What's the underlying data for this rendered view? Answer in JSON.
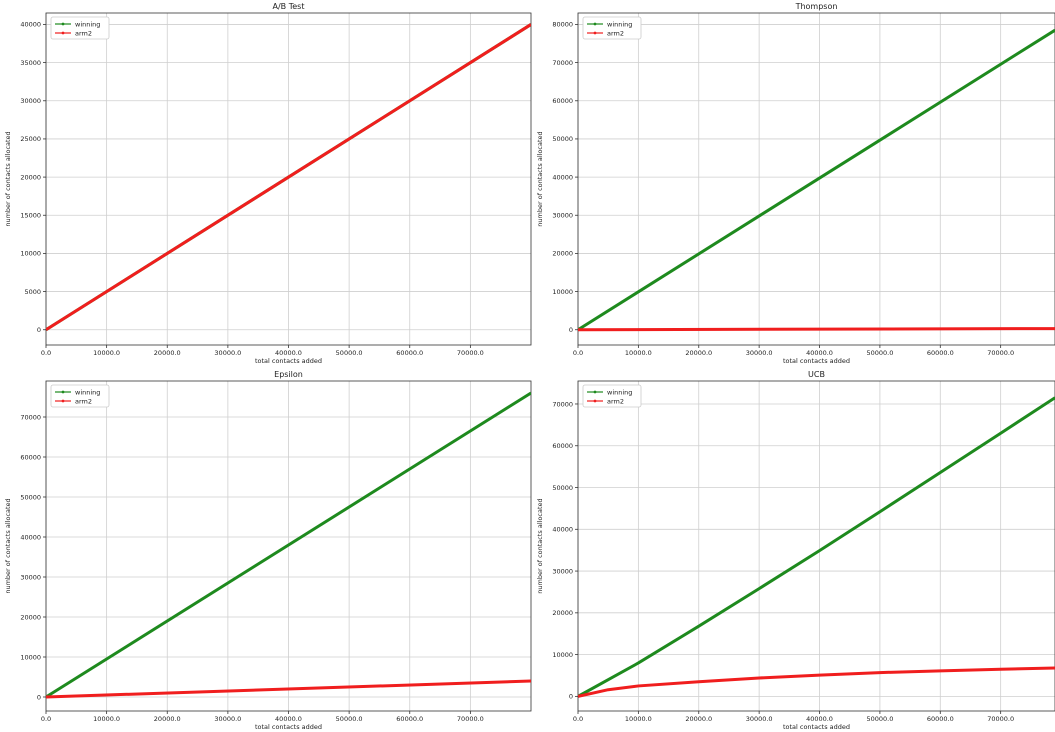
{
  "chart_data": [
    {
      "type": "line",
      "title": "A/B Test",
      "xlabel": "total contacts added",
      "ylabel": "number of contacts allocated",
      "xlim": [
        0,
        80000
      ],
      "ylim": [
        -2000,
        41500
      ],
      "xticks": [
        0,
        10000,
        20000,
        30000,
        40000,
        50000,
        60000,
        70000
      ],
      "xtick_labels": [
        "0.0",
        "10000.0",
        "20000.0",
        "30000.0",
        "40000.0",
        "50000.0",
        "60000.0",
        "70000.0"
      ],
      "yticks": [
        0,
        5000,
        10000,
        15000,
        20000,
        25000,
        30000,
        35000,
        40000
      ],
      "ytick_labels": [
        "0",
        "5000",
        "10000",
        "15000",
        "20000",
        "25000",
        "30000",
        "35000",
        "40000"
      ],
      "grid": true,
      "legend": "top-left",
      "series": [
        {
          "name": "winning",
          "color": "#1e8a1e",
          "x": [
            0,
            80000
          ],
          "y": [
            0,
            40000
          ]
        },
        {
          "name": "arm2",
          "color": "#f01e1e",
          "x": [
            0,
            80000
          ],
          "y": [
            0,
            40000
          ]
        }
      ]
    },
    {
      "type": "line",
      "title": "Thompson",
      "xlabel": "total contacts added",
      "ylabel": "number of contacts allocated",
      "xlim": [
        0,
        79000
      ],
      "ylim": [
        -4000,
        83000
      ],
      "xticks": [
        0,
        10000,
        20000,
        30000,
        40000,
        50000,
        60000,
        70000
      ],
      "xtick_labels": [
        "0.0",
        "10000.0",
        "20000.0",
        "30000.0",
        "40000.0",
        "50000.0",
        "60000.0",
        "70000.0"
      ],
      "yticks": [
        0,
        10000,
        20000,
        30000,
        40000,
        50000,
        60000,
        70000,
        80000
      ],
      "ytick_labels": [
        "0",
        "10000",
        "20000",
        "30000",
        "40000",
        "50000",
        "60000",
        "70000",
        "80000"
      ],
      "grid": true,
      "legend": "top-left",
      "series": [
        {
          "name": "winning",
          "color": "#1e8a1e",
          "x": [
            0,
            79000
          ],
          "y": [
            0,
            78500
          ]
        },
        {
          "name": "arm2",
          "color": "#f01e1e",
          "x": [
            0,
            79000
          ],
          "y": [
            0,
            300
          ]
        }
      ]
    },
    {
      "type": "line",
      "title": "Epsilon",
      "xlabel": "total contacts added",
      "ylabel": "number of contacts allocated",
      "xlim": [
        0,
        80000
      ],
      "ylim": [
        -3500,
        79000
      ],
      "xticks": [
        0,
        10000,
        20000,
        30000,
        40000,
        50000,
        60000,
        70000
      ],
      "xtick_labels": [
        "0.0",
        "10000.0",
        "20000.0",
        "30000.0",
        "40000.0",
        "50000.0",
        "60000.0",
        "70000.0"
      ],
      "yticks": [
        0,
        10000,
        20000,
        30000,
        40000,
        50000,
        60000,
        70000
      ],
      "ytick_labels": [
        "0",
        "10000",
        "20000",
        "30000",
        "40000",
        "50000",
        "60000",
        "70000"
      ],
      "grid": true,
      "legend": "top-left",
      "series": [
        {
          "name": "winning",
          "color": "#1e8a1e",
          "x": [
            0,
            80000
          ],
          "y": [
            0,
            76000
          ]
        },
        {
          "name": "arm2",
          "color": "#f01e1e",
          "x": [
            0,
            80000
          ],
          "y": [
            0,
            4000
          ]
        }
      ]
    },
    {
      "type": "line",
      "title": "UCB",
      "xlabel": "total contacts added",
      "ylabel": "number of contacts allocated",
      "xlim": [
        0,
        79000
      ],
      "ylim": [
        -3500,
        75500
      ],
      "xticks": [
        0,
        10000,
        20000,
        30000,
        40000,
        50000,
        60000,
        70000
      ],
      "xtick_labels": [
        "0.0",
        "10000.0",
        "20000.0",
        "30000.0",
        "40000.0",
        "50000.0",
        "60000.0",
        "70000.0"
      ],
      "yticks": [
        0,
        10000,
        20000,
        30000,
        40000,
        50000,
        60000,
        70000
      ],
      "ytick_labels": [
        "0",
        "10000",
        "20000",
        "30000",
        "40000",
        "50000",
        "60000",
        "70000"
      ],
      "grid": true,
      "legend": "top-left",
      "series": [
        {
          "name": "winning",
          "color": "#1e8a1e",
          "x": [
            0,
            10000,
            20000,
            30000,
            40000,
            50000,
            60000,
            70000,
            79000
          ],
          "y": [
            0,
            8000,
            16800,
            25800,
            34900,
            44200,
            53600,
            63000,
            71500
          ]
        },
        {
          "name": "arm2",
          "color": "#f01e1e",
          "x": [
            0,
            5000,
            10000,
            20000,
            30000,
            40000,
            50000,
            60000,
            70000,
            79000
          ],
          "y": [
            0,
            1600,
            2500,
            3500,
            4400,
            5100,
            5700,
            6100,
            6500,
            6800
          ]
        }
      ]
    }
  ]
}
